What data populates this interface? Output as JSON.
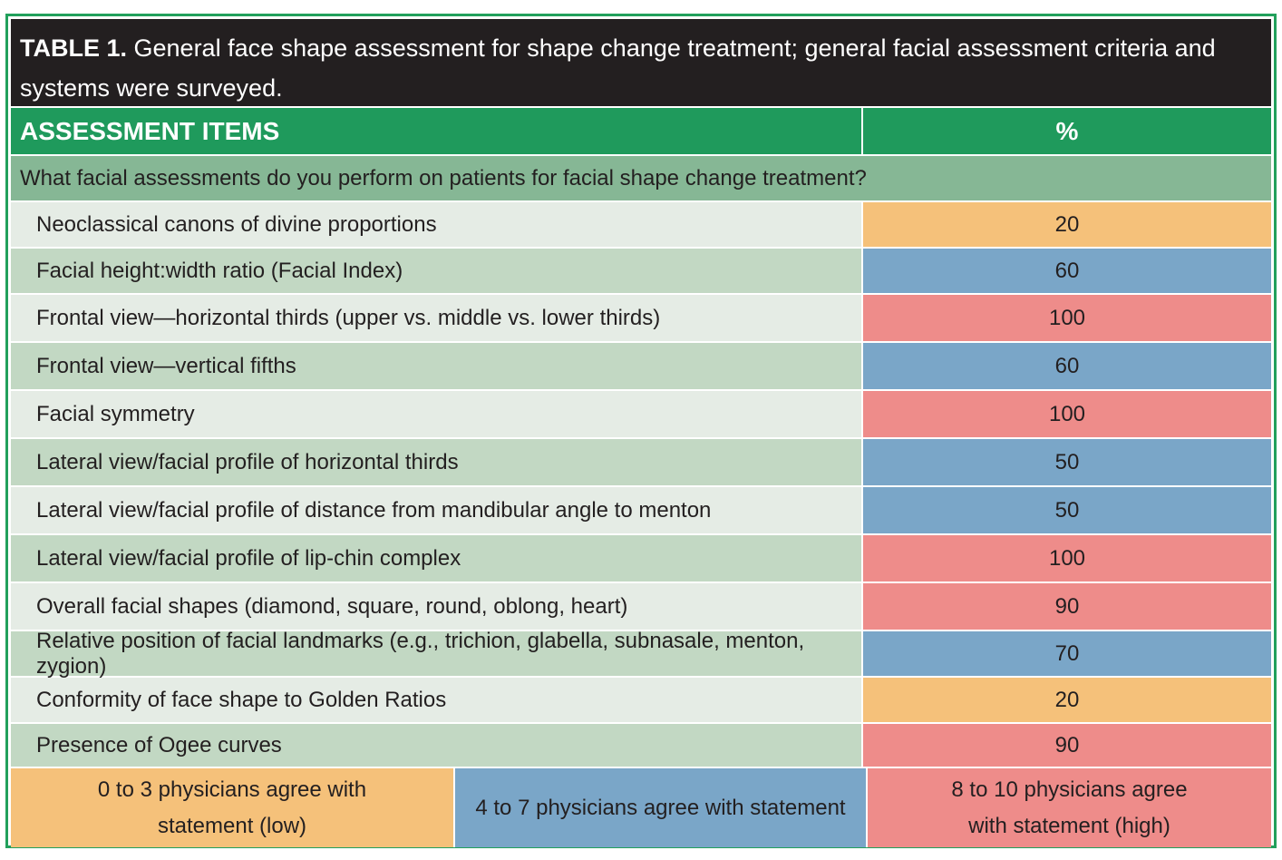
{
  "colors": {
    "border_green": "#22a05c",
    "header_green": "#1f9a5c",
    "question_green": "#86b795",
    "row_light": "#e5ece5",
    "row_mid": "#c2d8c3",
    "low": "#f5c17a",
    "mid": "#7aa6c8",
    "high": "#ee8c8a",
    "title_bg": "#231f20"
  },
  "title": {
    "lead": "TABLE 1.",
    "text": " General face shape assessment for shape change treatment; general facial assessment criteria and systems were surveyed."
  },
  "header": {
    "item_label": "ASSESSMENT ITEMS",
    "pct_label": "%"
  },
  "question": "What facial assessments do you perform on patients for facial shape change treatment?",
  "rows": [
    {
      "item": "Neoclassical canons of divine proportions",
      "value": "20",
      "level": "low"
    },
    {
      "item": "Facial height:width ratio (Facial Index)",
      "value": "60",
      "level": "mid"
    },
    {
      "item": "Frontal view—horizontal thirds (upper vs. middle vs. lower thirds)",
      "value": "100",
      "level": "high"
    },
    {
      "item": "Frontal view—vertical fifths",
      "value": "60",
      "level": "mid"
    },
    {
      "item": "Facial symmetry",
      "value": "100",
      "level": "high"
    },
    {
      "item": "Lateral view/facial profile of horizontal thirds",
      "value": "50",
      "level": "mid"
    },
    {
      "item": "Lateral view/facial profile of distance from mandibular angle to menton",
      "value": "50",
      "level": "mid"
    },
    {
      "item": "Lateral view/facial profile of lip-chin complex",
      "value": "100",
      "level": "high"
    },
    {
      "item": "Overall facial shapes (diamond, square, round, oblong, heart)",
      "value": "90",
      "level": "high"
    },
    {
      "item": "Relative position of facial landmarks (e.g., trichion, glabella, subnasale, menton, zygion)",
      "value": "70",
      "level": "mid"
    },
    {
      "item": "Conformity of face shape to Golden Ratios",
      "value": "20",
      "level": "low"
    },
    {
      "item": "Presence of Ogee curves",
      "value": "90",
      "level": "high"
    }
  ],
  "legend": [
    {
      "text": "0 to 3 physicians agree with statement (low)",
      "level": "low"
    },
    {
      "text": "4 to 7 physicians agree with statement",
      "level": "mid"
    },
    {
      "text": "8 to 10 physicians agree with statement (high)",
      "level": "high"
    }
  ]
}
